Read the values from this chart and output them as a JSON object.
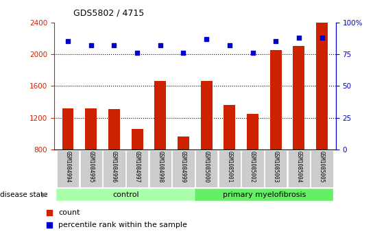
{
  "title": "GDS5802 / 4715",
  "samples": [
    "GSM1084994",
    "GSM1084995",
    "GSM1084996",
    "GSM1084997",
    "GSM1084998",
    "GSM1084999",
    "GSM1085000",
    "GSM1085001",
    "GSM1085002",
    "GSM1085003",
    "GSM1085004",
    "GSM1085005"
  ],
  "counts": [
    1320,
    1320,
    1310,
    1060,
    1660,
    960,
    1660,
    1360,
    1250,
    2050,
    2100,
    2400
  ],
  "percentiles": [
    85,
    82,
    82,
    76,
    82,
    76,
    87,
    82,
    76,
    85,
    88,
    88
  ],
  "control_count": 6,
  "ylim_left": [
    800,
    2400
  ],
  "ylim_right": [
    0,
    100
  ],
  "yticks_left": [
    800,
    1200,
    1600,
    2000,
    2400
  ],
  "yticks_right": [
    0,
    25,
    50,
    75,
    100
  ],
  "bar_color": "#cc2200",
  "dot_color": "#0000cc",
  "control_color": "#aaffaa",
  "disease_color": "#66ee66",
  "tick_bg_color": "#cccccc",
  "grid_values": [
    1200,
    1600,
    2000
  ],
  "disease_state_label": "disease state",
  "control_label": "control",
  "disease_label": "primary myelofibrosis",
  "legend_count_label": "count",
  "legend_pct_label": "percentile rank within the sample",
  "bar_width": 0.5
}
